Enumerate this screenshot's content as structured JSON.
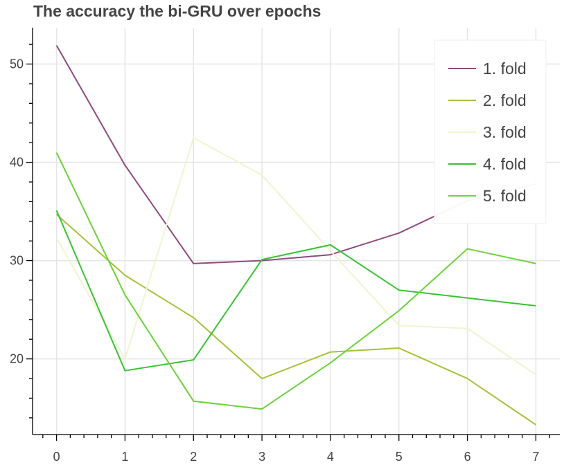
{
  "chart_data": {
    "type": "line",
    "title": "The accuracy the bi-GRU over epochs",
    "xlabel": "",
    "ylabel": "",
    "x": [
      0,
      1,
      2,
      3,
      4,
      5,
      6,
      7
    ],
    "xticks": [
      0,
      1,
      2,
      3,
      4,
      5,
      6,
      7
    ],
    "yticks": [
      20,
      30,
      40,
      50
    ],
    "xlim": [
      -0.35,
      7.35
    ],
    "ylim": [
      12.3,
      53.7
    ],
    "grid": true,
    "legend_position": "top-right",
    "series": [
      {
        "name": "1. fold",
        "color": "#8e4a7e",
        "values": [
          51.9,
          39.7,
          29.7,
          30.0,
          30.6,
          32.8,
          36.1,
          37.8
        ]
      },
      {
        "name": "2. fold",
        "color": "#a3c23a",
        "values": [
          34.7,
          28.5,
          24.2,
          18.0,
          20.7,
          21.1,
          18.0,
          13.3
        ]
      },
      {
        "name": "3. fold",
        "color": "#eef5cf",
        "values": [
          32.3,
          20.0,
          42.5,
          38.7,
          31.0,
          23.4,
          23.1,
          18.4
        ]
      },
      {
        "name": "4. fold",
        "color": "#38c232",
        "values": [
          35.1,
          18.8,
          19.9,
          30.1,
          31.6,
          27.0,
          26.2,
          25.4
        ]
      },
      {
        "name": "5. fold",
        "color": "#6bd13a",
        "values": [
          41.0,
          26.5,
          15.7,
          14.9,
          19.6,
          24.9,
          31.2,
          29.7
        ]
      }
    ]
  }
}
